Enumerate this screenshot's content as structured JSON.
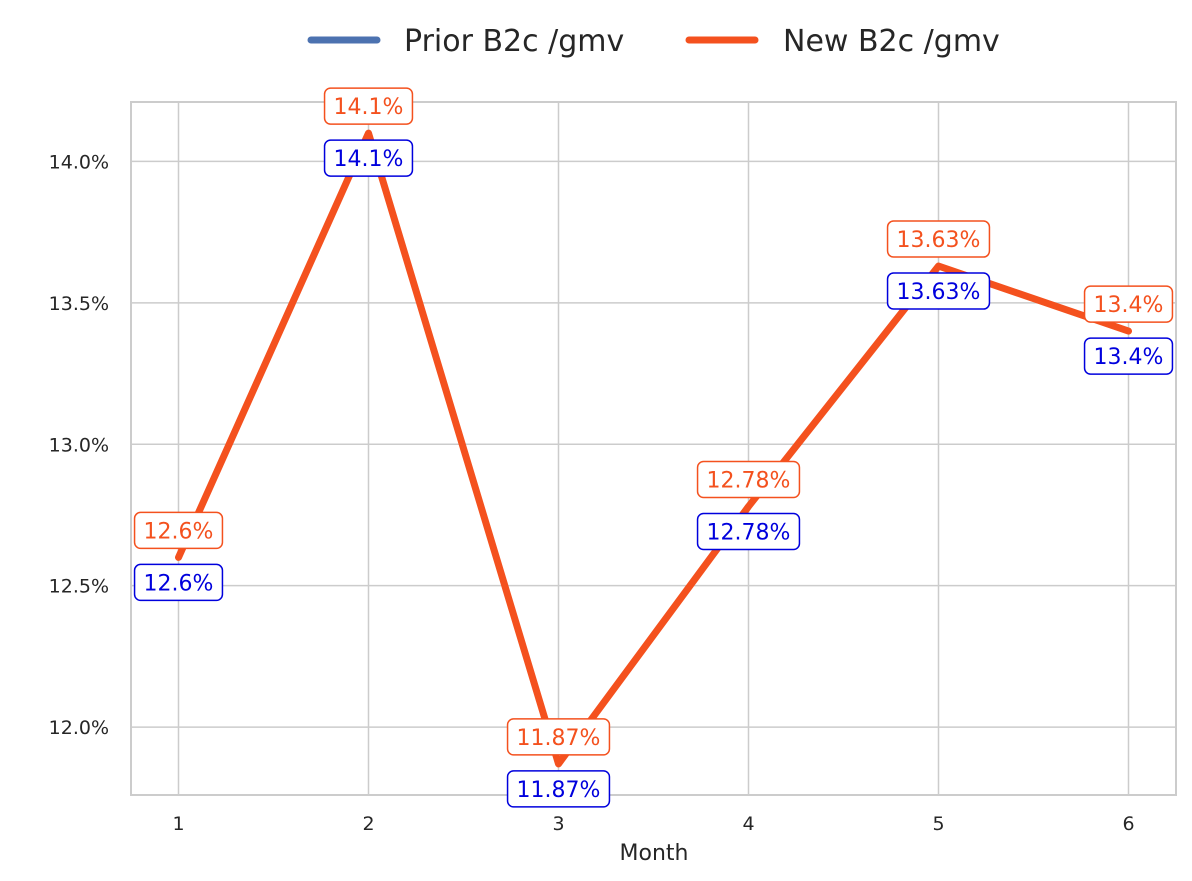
{
  "chart_data": {
    "type": "line",
    "title": "",
    "xlabel": "Month",
    "ylabel": "",
    "x": [
      1,
      2,
      3,
      4,
      5,
      6
    ],
    "xlim": [
      0.75,
      6.25
    ],
    "ylim": [
      11.76,
      14.21
    ],
    "yticks": [
      12.0,
      12.5,
      13.0,
      13.5,
      14.0
    ],
    "ytick_labels": [
      "12.0%",
      "12.5%",
      "13.0%",
      "13.5%",
      "14.0%"
    ],
    "grid": true,
    "legend_position": "top-center",
    "series": [
      {
        "name": "Prior B2c /gmv",
        "color": "#4c72b0",
        "label_color": "#0000dd",
        "values": [
          12.6,
          14.1,
          11.87,
          12.78,
          13.63,
          13.4
        ],
        "labels": [
          "12.6%",
          "14.1%",
          "11.87%",
          "12.78%",
          "13.63%",
          "13.4%"
        ]
      },
      {
        "name": "New B2c /gmv",
        "color": "#f4511e",
        "label_color": "#f4511e",
        "values": [
          12.6,
          14.1,
          11.87,
          12.78,
          13.63,
          13.4
        ],
        "labels": [
          "12.6%",
          "14.1%",
          "11.87%",
          "12.78%",
          "13.63%",
          "13.4%"
        ]
      }
    ]
  }
}
